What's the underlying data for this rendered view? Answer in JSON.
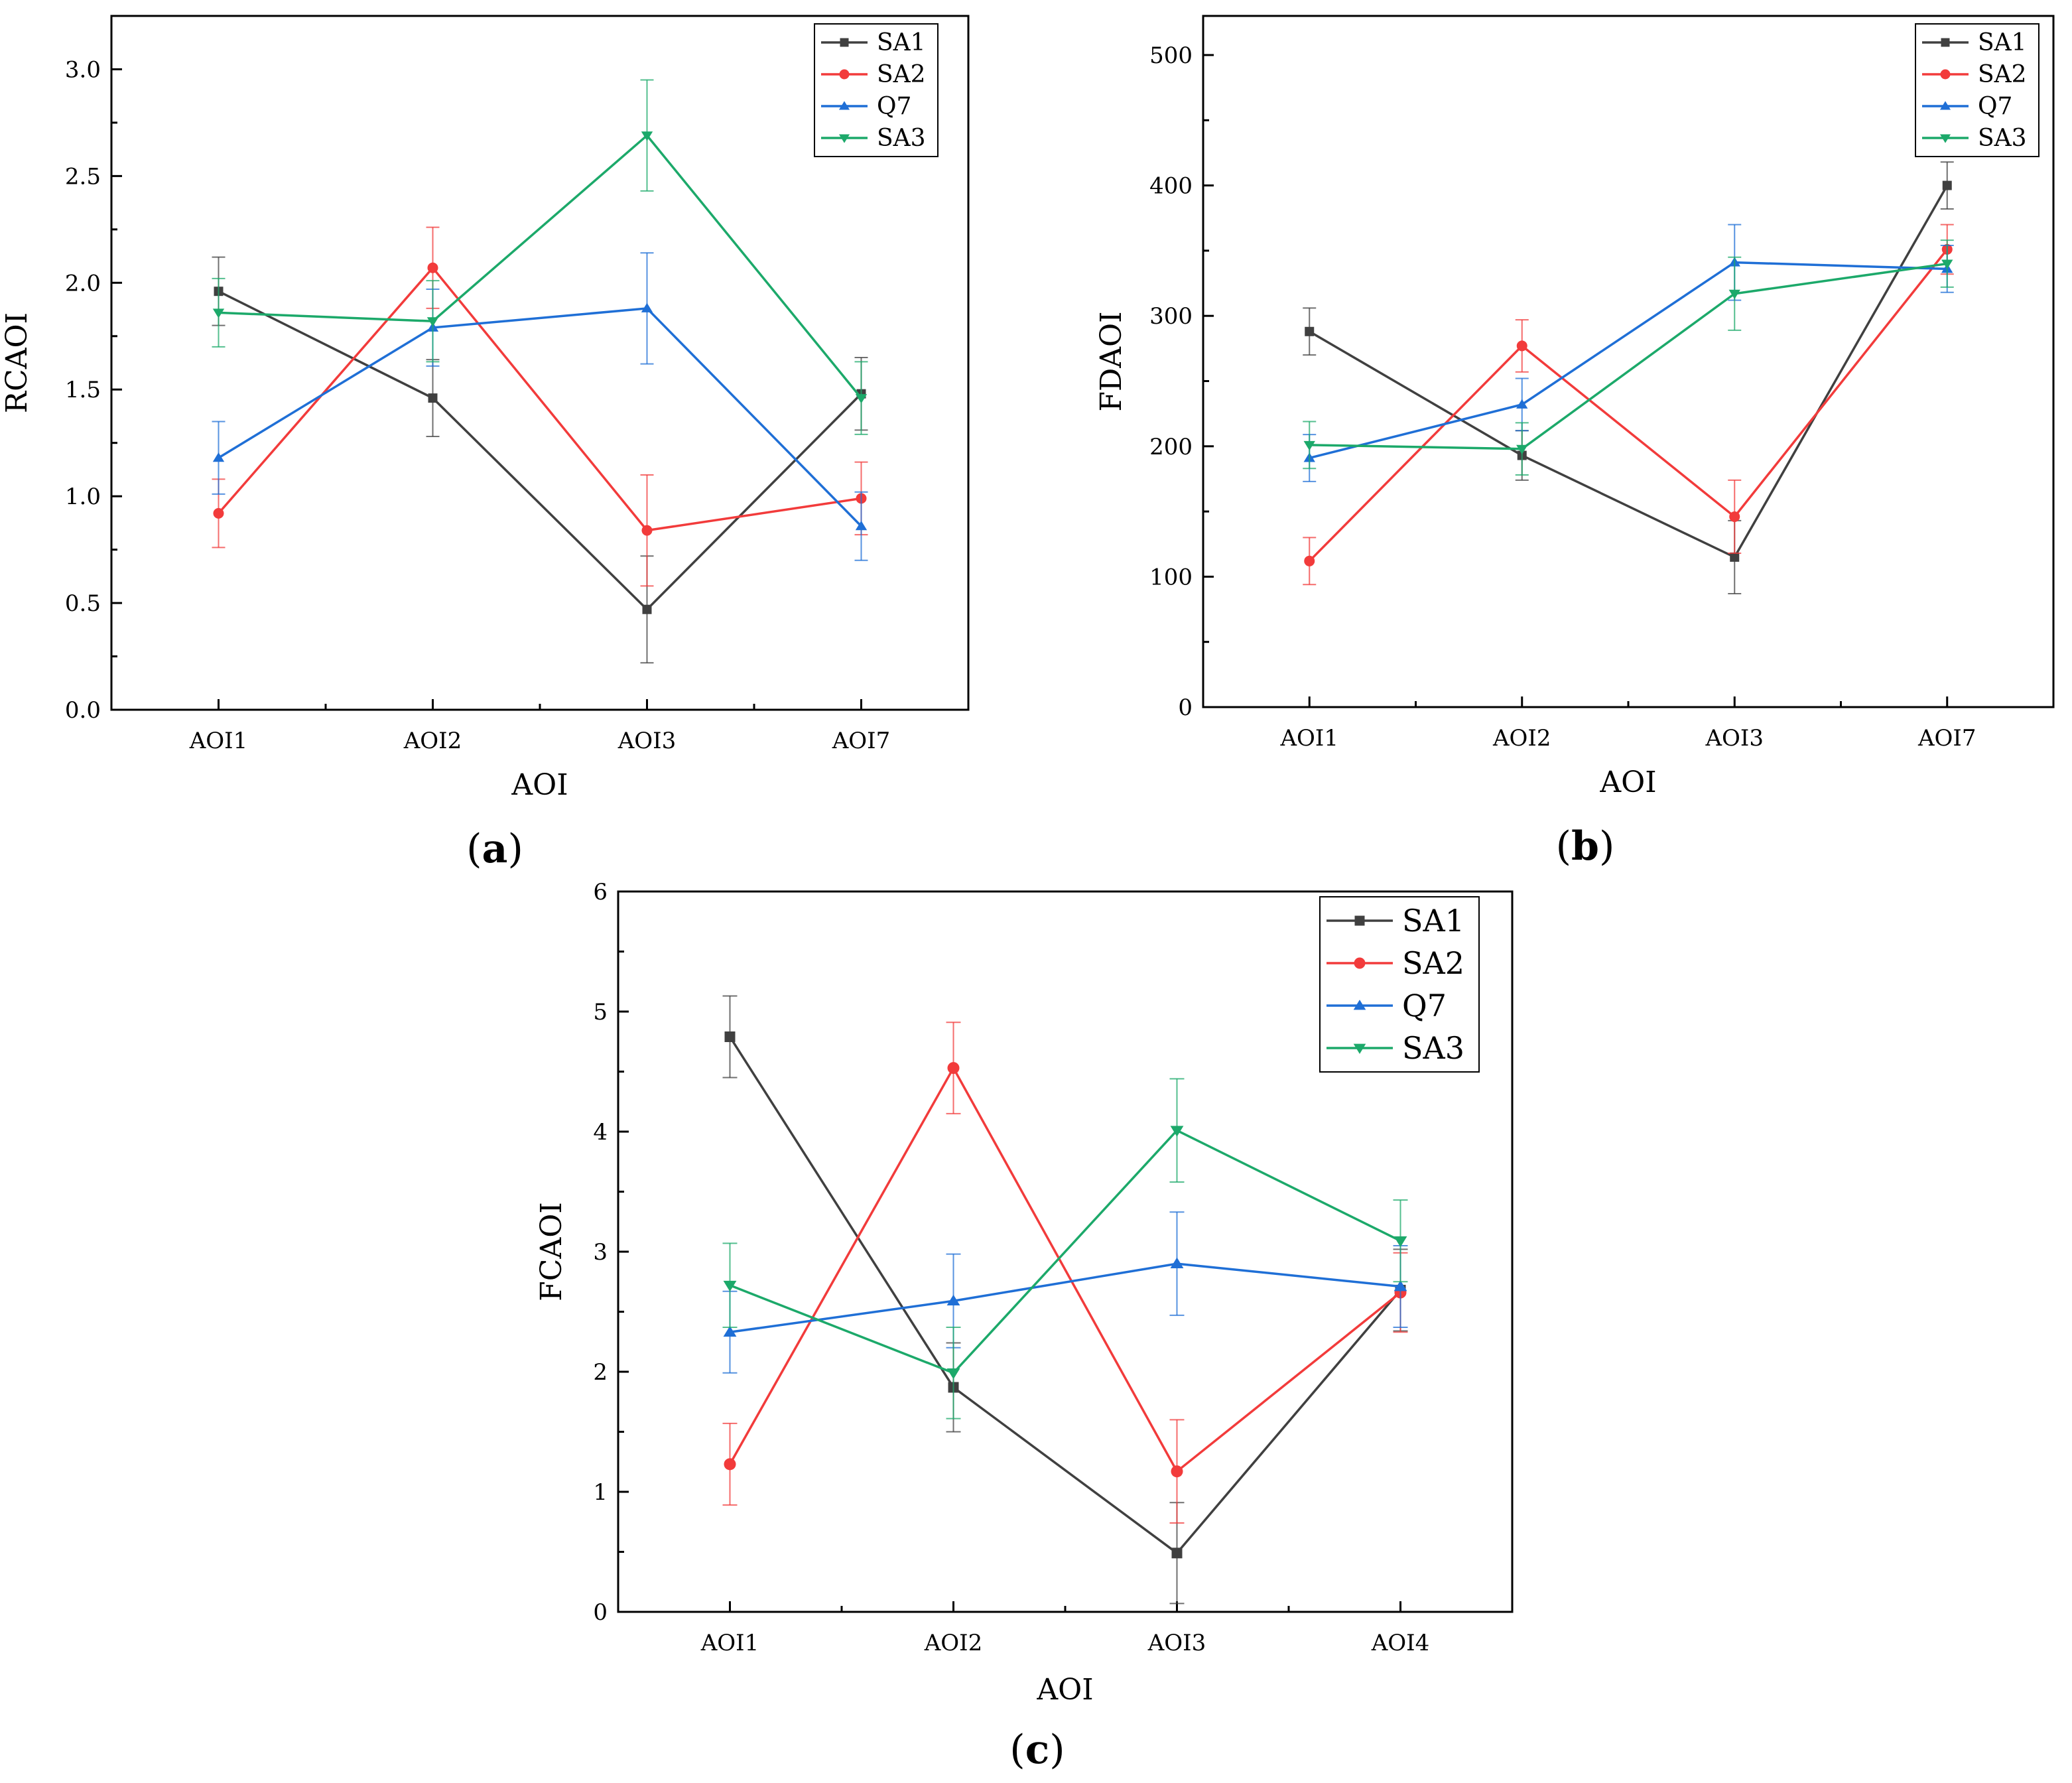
{
  "colors": {
    "SA1": "#404040",
    "SA2": "#f23b3b",
    "Q7": "#1f6fd6",
    "SA3": "#1ca96a"
  },
  "chart_data": [
    {
      "type": "line",
      "panel": "(a)",
      "xlabel": "AOI",
      "ylabel": "RCAOI",
      "categories": [
        "AOI1",
        "AOI2",
        "AOI3",
        "AOI7"
      ],
      "ylim": [
        0,
        3.25
      ],
      "yticks": [
        "0.0",
        "0.5",
        "1.0",
        "1.5",
        "2.0",
        "2.5",
        "3.0"
      ],
      "legend_position": "top-right",
      "series": [
        {
          "name": "SA1",
          "marker": "square",
          "values": [
            1.96,
            1.46,
            0.47,
            1.48
          ],
          "errors": [
            0.16,
            0.18,
            0.25,
            0.17
          ]
        },
        {
          "name": "SA2",
          "marker": "circle",
          "values": [
            0.92,
            2.07,
            0.84,
            0.99
          ],
          "errors": [
            0.16,
            0.19,
            0.26,
            0.17
          ]
        },
        {
          "name": "Q7",
          "marker": "triangle-up",
          "values": [
            1.18,
            1.79,
            1.88,
            0.86
          ],
          "errors": [
            0.17,
            0.18,
            0.26,
            0.16
          ]
        },
        {
          "name": "SA3",
          "marker": "triangle-down",
          "values": [
            1.86,
            1.82,
            2.69,
            1.46
          ],
          "errors": [
            0.16,
            0.19,
            0.26,
            0.17
          ]
        }
      ]
    },
    {
      "type": "line",
      "panel": "(b)",
      "xlabel": "AOI",
      "ylabel": "FDAOI",
      "categories": [
        "AOI1",
        "AOI2",
        "AOI3",
        "AOI7"
      ],
      "ylim": [
        0,
        530
      ],
      "yticks": [
        "0",
        "100",
        "200",
        "300",
        "400",
        "500"
      ],
      "legend_position": "top-right",
      "series": [
        {
          "name": "SA1",
          "marker": "square",
          "values": [
            288,
            193,
            115,
            400
          ],
          "errors": [
            18,
            19,
            28,
            18
          ]
        },
        {
          "name": "SA2",
          "marker": "circle",
          "values": [
            112,
            277,
            146,
            351
          ],
          "errors": [
            18,
            20,
            28,
            19
          ]
        },
        {
          "name": "Q7",
          "marker": "triangle-up",
          "values": [
            191,
            232,
            341,
            336
          ],
          "errors": [
            18,
            20,
            29,
            18
          ]
        },
        {
          "name": "SA3",
          "marker": "triangle-down",
          "values": [
            201,
            198,
            317,
            340
          ],
          "errors": [
            18,
            20,
            28,
            18
          ]
        }
      ]
    },
    {
      "type": "line",
      "panel": "(c)",
      "xlabel": "AOI",
      "ylabel": "FCAOI",
      "categories": [
        "AOI1",
        "AOI2",
        "AOI3",
        "AOI4"
      ],
      "ylim": [
        0,
        6
      ],
      "yticks": [
        "0",
        "1",
        "2",
        "3",
        "4",
        "5",
        "6"
      ],
      "legend_position": "top-right",
      "series": [
        {
          "name": "SA1",
          "marker": "square",
          "values": [
            4.79,
            1.87,
            0.49,
            2.68
          ],
          "errors": [
            0.34,
            0.37,
            0.42,
            0.34
          ]
        },
        {
          "name": "SA2",
          "marker": "circle",
          "values": [
            1.23,
            4.53,
            1.17,
            2.66
          ],
          "errors": [
            0.34,
            0.38,
            0.43,
            0.33
          ]
        },
        {
          "name": "Q7",
          "marker": "triangle-up",
          "values": [
            2.33,
            2.59,
            2.9,
            2.71
          ],
          "errors": [
            0.34,
            0.39,
            0.43,
            0.34
          ]
        },
        {
          "name": "SA3",
          "marker": "triangle-down",
          "values": [
            2.72,
            1.99,
            4.01,
            3.09
          ],
          "errors": [
            0.35,
            0.38,
            0.43,
            0.34
          ]
        }
      ]
    }
  ]
}
